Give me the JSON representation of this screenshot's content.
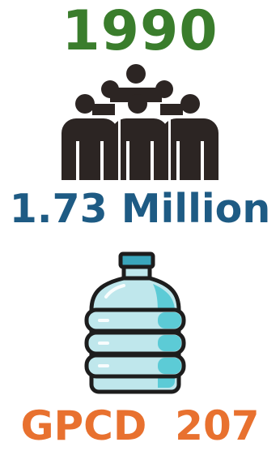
{
  "year": {
    "text": "1990",
    "color": "#3a7d2c"
  },
  "population": {
    "text": "1.73 Million",
    "color": "#1e5b84"
  },
  "gpcd": {
    "text": "GPCD  207",
    "color": "#e8712f"
  },
  "icons": {
    "people": {
      "name": "people-group-icon",
      "color": "#2c2523"
    },
    "bottle": {
      "name": "water-bottle-icon",
      "body": "#bfe7ec",
      "shade": "#5ccbd6",
      "cap": "#3aa6bc",
      "outline": "#1d1d1d"
    }
  }
}
